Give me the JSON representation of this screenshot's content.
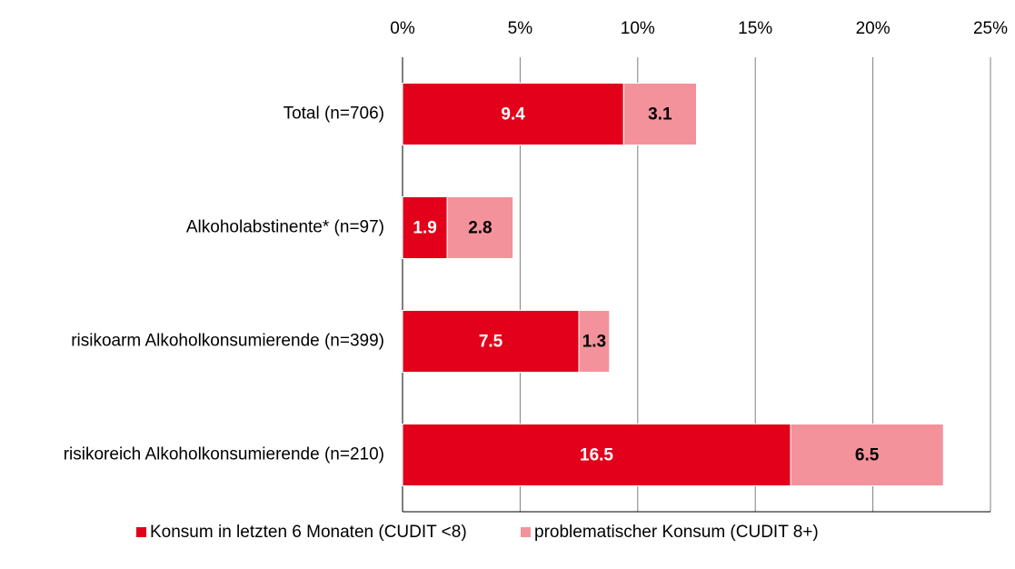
{
  "chart_data": {
    "type": "stacked-bar-horizontal",
    "categories": [
      "Total (n=706)",
      "Alkoholabstinente* (n=97)",
      "risikoarm Alkoholkonsumierende (n=399)",
      "risikoreich Alkoholkonsumierende (n=210)"
    ],
    "series": [
      {
        "name": "Konsum in letzten 6 Monaten (CUDIT <8)",
        "color": "#e2001a",
        "label_color": "#ffffff",
        "values": [
          9.4,
          1.9,
          7.5,
          16.5
        ]
      },
      {
        "name": "problematischer Konsum (CUDIT 8+)",
        "color": "#f4929b",
        "label_color": "#000000",
        "values": [
          3.1,
          2.8,
          1.3,
          6.5
        ]
      }
    ],
    "xlim": [
      0,
      25
    ],
    "xticks": [
      {
        "value": 0,
        "label": "0%"
      },
      {
        "value": 5,
        "label": "5%"
      },
      {
        "value": 10,
        "label": "10%"
      },
      {
        "value": 15,
        "label": "15%"
      },
      {
        "value": 20,
        "label": "20%"
      },
      {
        "value": 25,
        "label": "25%"
      }
    ],
    "grid": true,
    "legend": "bottom"
  }
}
